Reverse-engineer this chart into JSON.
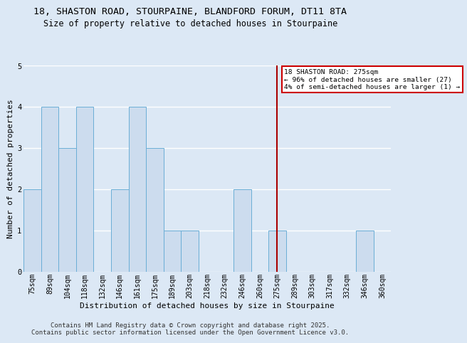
{
  "title1": "18, SHASTON ROAD, STOURPAINE, BLANDFORD FORUM, DT11 8TA",
  "title2": "Size of property relative to detached houses in Stourpaine",
  "xlabel": "Distribution of detached houses by size in Stourpaine",
  "ylabel": "Number of detached properties",
  "categories": [
    "75sqm",
    "89sqm",
    "104sqm",
    "118sqm",
    "132sqm",
    "146sqm",
    "161sqm",
    "175sqm",
    "189sqm",
    "203sqm",
    "218sqm",
    "232sqm",
    "246sqm",
    "260sqm",
    "275sqm",
    "289sqm",
    "303sqm",
    "317sqm",
    "332sqm",
    "346sqm",
    "360sqm"
  ],
  "values": [
    2,
    4,
    3,
    4,
    0,
    2,
    4,
    3,
    1,
    1,
    0,
    0,
    2,
    0,
    1,
    0,
    0,
    0,
    0,
    1,
    0
  ],
  "bar_color": "#ccdcee",
  "bar_edge_color": "#6aaed6",
  "ylim": [
    0,
    5
  ],
  "yticks": [
    0,
    1,
    2,
    3,
    4,
    5
  ],
  "reference_line_x": "275sqm",
  "reference_line_color": "#aa0000",
  "annotation_text": "18 SHASTON ROAD: 275sqm\n← 96% of detached houses are smaller (27)\n4% of semi-detached houses are larger (1) →",
  "annotation_box_color": "#ffffff",
  "annotation_box_edge": "#cc0000",
  "footer1": "Contains HM Land Registry data © Crown copyright and database right 2025.",
  "footer2": "Contains public sector information licensed under the Open Government Licence v3.0.",
  "bg_color": "#dce8f5",
  "plot_bg_color": "#dce8f5",
  "grid_color": "#ffffff",
  "title_fontsize": 9.5,
  "subtitle_fontsize": 8.5,
  "axis_label_fontsize": 8,
  "tick_fontsize": 7,
  "footer_fontsize": 6.5
}
